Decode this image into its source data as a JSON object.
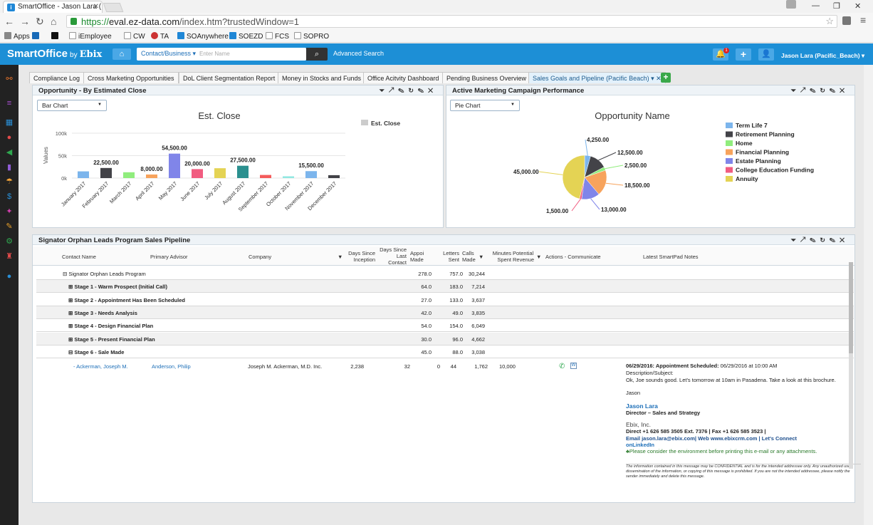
{
  "browser": {
    "tab_title": "SmartOffice - Jason Lara (",
    "url_scheme": "https://",
    "url_host": "eval.ez-data.com",
    "url_path": "/index.htm?trustedWindow=1",
    "bookmarks": [
      "Apps",
      "",
      "",
      "iEmployee",
      "CW",
      "TA",
      "SOAnywhere",
      "SOEZD",
      "FCS",
      "SOPRO"
    ]
  },
  "appbar": {
    "logo": "SmartOffice",
    "logo_by": "by",
    "logo_ebix": "Ebix",
    "search_category": "Contact/Business ▾",
    "search_placeholder": "Enter Name",
    "advanced_search": "Advanced Search",
    "notification_count": "1",
    "user": "Jason Lara (Pacific_Beach) ▾"
  },
  "tabs": [
    "Compliance Log",
    "Cross Marketing Opportunities",
    "DoL Client Segmentation Report",
    "Money in Stocks and Funds",
    "Office Acitvity Dashboard",
    "Pending Business Overview",
    "Sales Goals and Pipeline (Pacific Beach) ▾ ✕"
  ],
  "colors": {
    "appbar": "#1d8fd6",
    "accent": "#1d6fb8"
  },
  "panel1": {
    "title": "Opportunity - By Estimated Close",
    "dropdown": "Bar Chart"
  },
  "panel2": {
    "title": "Active Marketing Campaign Performance",
    "dropdown": "Pie Chart"
  },
  "chart_data": [
    {
      "type": "bar",
      "title": "Est. Close",
      "ylabel": "Values",
      "ylim": [
        0,
        100000
      ],
      "yticks": [
        "100k",
        "50k",
        "0k"
      ],
      "legend": [
        "Est. Close"
      ],
      "categories": [
        "January 2017",
        "February 2017",
        "March 2017",
        "April 2017",
        "May 2017",
        "June 2017",
        "July 2017",
        "August 2017",
        "September 2017",
        "October 2017",
        "November 2017",
        "December 2017"
      ],
      "values": [
        15000,
        22500,
        13000,
        8000,
        54500,
        20000,
        22000,
        27500,
        7000,
        4000,
        15500,
        6500
      ],
      "data_labels": [
        "",
        "22,500.00",
        "",
        "8,000.00",
        "54,500.00",
        "20,000.00",
        "",
        "27,500.00",
        "",
        "",
        "15,500.00",
        ""
      ],
      "colors": [
        "#7cb5ec",
        "#434348",
        "#90ed7d",
        "#f7a35c",
        "#8085e9",
        "#f15c80",
        "#e4d354",
        "#2b908f",
        "#f45b5b",
        "#91e8e1",
        "#7cb5ec",
        "#434348"
      ]
    },
    {
      "type": "pie",
      "title": "Opportunity Name",
      "slices": [
        {
          "name": "Term Life 7",
          "value": 4250,
          "label": "4,250.00",
          "color": "#7cb5ec"
        },
        {
          "name": "Retirement Planning",
          "value": 12500,
          "label": "12,500.00",
          "color": "#434348"
        },
        {
          "name": "Home",
          "value": 2500,
          "label": "2,500.00",
          "color": "#90ed7d"
        },
        {
          "name": "Financial Planning",
          "value": 18500,
          "label": "18,500.00",
          "color": "#f7a35c"
        },
        {
          "name": "Estate Planning",
          "value": 13000,
          "label": "13,000.00",
          "color": "#8085e9"
        },
        {
          "name": "College Education Funding",
          "value": 1500,
          "label": "1,500.00",
          "color": "#f15c80"
        },
        {
          "name": "Annuity",
          "value": 45000,
          "label": "45,000.00",
          "color": "#e4d354"
        }
      ]
    }
  ],
  "pipeline": {
    "title": "Signator Orphan Leads Program Sales Pipeline",
    "headers": [
      "Contact Name",
      "Primary Advisor",
      "Company",
      "Days Since Inception",
      "Days Since Last Contact",
      "Appoi Made",
      "Letters Sent",
      "Calls Made",
      "Minutes Spent",
      "Potential Revenue",
      "Actions - Communicate",
      "Latest SmartPad Notes"
    ],
    "rows": [
      {
        "label": "⊟ Signator Orphan Leads Program",
        "last": "278.0",
        "letters": "757.0",
        "calls": "30,244"
      },
      {
        "label": "⊞ Stage 1 - Warm Prospect (Initial Call)",
        "last": "64.0",
        "letters": "183.0",
        "calls": "7,214"
      },
      {
        "label": "⊞ Stage 2 - Appointment Has Been Scheduled",
        "last": "27.0",
        "letters": "133.0",
        "calls": "3,637"
      },
      {
        "label": "⊞ Stage 3 - Needs Analysis",
        "last": "42.0",
        "letters": "49.0",
        "calls": "3,835"
      },
      {
        "label": "⊞ Stage 4 - Design Financial Plan",
        "last": "54.0",
        "letters": "154.0",
        "calls": "6,049"
      },
      {
        "label": "⊞ Stage 5 - Present Financial Plan",
        "last": "30.0",
        "letters": "96.0",
        "calls": "4,662"
      },
      {
        "label": "⊟ Stage 6 - Sale Made",
        "last": "45.0",
        "letters": "88.0",
        "calls": "3,038"
      }
    ],
    "detail": {
      "contact": "Ackerman, Joseph M.",
      "advisor": "Anderson, Philip",
      "company": "Joseph M. Ackerman, M.D. Inc.",
      "inception": "2,238",
      "last": "32",
      "appoi": "0",
      "letters": "44",
      "calls": "1,762",
      "minutes": "10,000",
      "note_date": "06/29/2016: Appointment Scheduled:",
      "note_rest": " 06/29/2016 at 10:00 AM",
      "note_desc": "Description/Subject:",
      "note_body": "Ok, Joe sounds good. Let's tomorrow at 10am in Pasadena. Take a look at this brochure.",
      "note_sign": "Jason",
      "sig_name": "Jason Lara",
      "sig_title": "Director – Sales and Strategy",
      "sig_company": "Ebix, Inc.",
      "sig_line1": "Direct +1 626 585 3505 Ext. 7376 | Fax +1 626 585 3523 |",
      "sig_line2": "Email jason.lara@ebix.com| Web www.ebixcrm.com | Let's Connect",
      "sig_line3": "onLinkedIn",
      "sig_env": "Please consider the environment before printing this e-mail or any attachments.",
      "disclaimer": "The information contained in this message may be CONFIDENTIAL and is for the intended addressee only. Any unauthorized use, dissemination of the information, or copying of this message is prohibited. If you are not the intended addressee, please notify the sender immediately and delete this message."
    }
  }
}
